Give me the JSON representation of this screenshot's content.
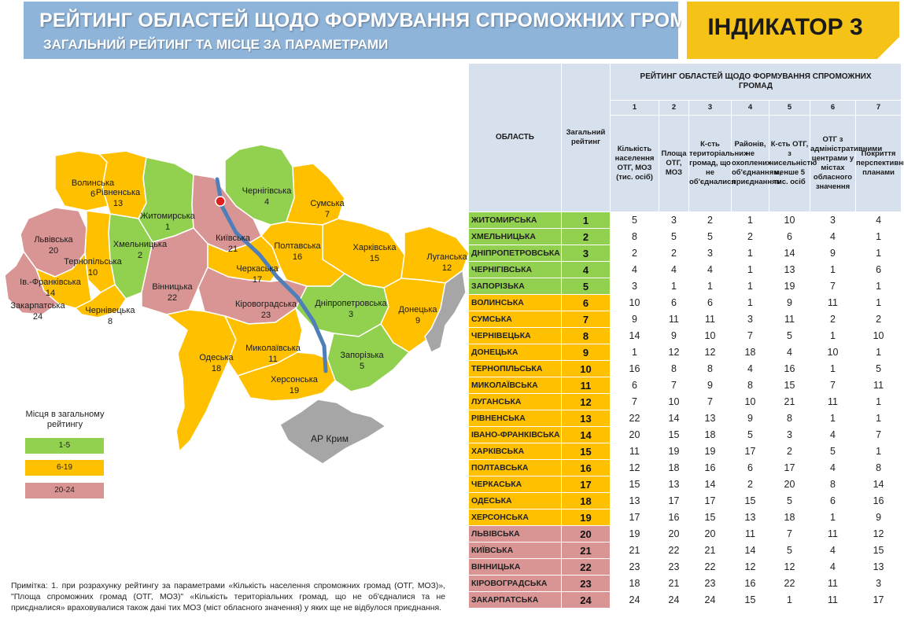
{
  "header": {
    "title": "РЕЙТИНГ ОБЛАСТЕЙ ЩОДО ФОРМУВАННЯ СПРОМОЖНИХ ГРОМАД",
    "subtitle": "ЗАГАЛЬНИЙ РЕЙТИНГ ТА МІСЦЕ ЗА ПАРАМЕТРАМИ",
    "indicator": "ІНДИКАТОР 3"
  },
  "colors": {
    "green": "#92d050",
    "yellow": "#ffc000",
    "red": "#d99594",
    "grey": "#a6a6a6",
    "header_blue": "#8fb4d9",
    "indicator_yellow": "#f5c317"
  },
  "map": {
    "regions": [
      {
        "name": "Волинська",
        "num": "6",
        "group": "yellow"
      },
      {
        "name": "Рівненська",
        "num": "13",
        "group": "yellow"
      },
      {
        "name": "Житомирська",
        "num": "1",
        "group": "green"
      },
      {
        "name": "Київська",
        "num": "21",
        "group": "red"
      },
      {
        "name": "Чернігівська",
        "num": "4",
        "group": "green"
      },
      {
        "name": "Сумська",
        "num": "7",
        "group": "yellow"
      },
      {
        "name": "Харківська",
        "num": "15",
        "group": "yellow"
      },
      {
        "name": "Луганська",
        "num": "12",
        "group": "yellow"
      },
      {
        "name": "Львівська",
        "num": "20",
        "group": "red"
      },
      {
        "name": "Хмельницька",
        "num": "2",
        "group": "green"
      },
      {
        "name": "Тернопільська",
        "num": "10",
        "group": "yellow"
      },
      {
        "name": "Ів.-Франківська",
        "num": "14",
        "group": "yellow"
      },
      {
        "name": "Закарпатська",
        "num": "24",
        "group": "red"
      },
      {
        "name": "Чернівецька",
        "num": "8",
        "group": "yellow"
      },
      {
        "name": "Вінницька",
        "num": "22",
        "group": "red"
      },
      {
        "name": "Черкаська",
        "num": "17",
        "group": "yellow"
      },
      {
        "name": "Полтавська",
        "num": "16",
        "group": "yellow"
      },
      {
        "name": "Кіровоградська",
        "num": "23",
        "group": "red"
      },
      {
        "name": "Дніпропетровська",
        "num": "3",
        "group": "green"
      },
      {
        "name": "Донецька",
        "num": "9",
        "group": "yellow"
      },
      {
        "name": "Одеська",
        "num": "18",
        "group": "yellow"
      },
      {
        "name": "Миколаївська",
        "num": "11",
        "group": "yellow"
      },
      {
        "name": "Запорізька",
        "num": "5",
        "group": "green"
      },
      {
        "name": "Херсонська",
        "num": "19",
        "group": "yellow"
      }
    ],
    "crimea": "АР Крим"
  },
  "legend": {
    "title": "Місця в загальному рейтингу",
    "items": [
      {
        "label": "1-5",
        "color": "#92d050"
      },
      {
        "label": "6-19",
        "color": "#ffc000"
      },
      {
        "label": "20-24",
        "color": "#d99594"
      }
    ]
  },
  "note": "Примітка: 1. при розрахунку рейтингу за параметрами «Кількість населення спроможних громад (ОТГ, МОЗ)», \"Площа спроможних громад (ОТГ, МОЗ)\" «Кількість територіальних громад, що не об'єдналися та не приєдналися» враховувалися також дані тих МОЗ (міст обласного значення) у яких ще не відбулося приєднання.",
  "table": {
    "col_region": "ОБЛАСТЬ",
    "col_overall": "Загальний рейтинг",
    "group_header": "РЕЙТИНГ ОБЛАСТЕЙ ЩОДО ФОРМУВАННЯ СПРОМОЖНИХ ГРОМАД",
    "param_nums": [
      "1",
      "2",
      "3",
      "4",
      "5",
      "6",
      "7"
    ],
    "param_names": [
      "Кількість населення ОТГ, МОЗ (тис. осіб)",
      "Площа ОТГ, МОЗ",
      "К-сть територіальних громад, що не об'єдналися",
      "Районів, не охоплених об'єднанням, приєднанням",
      "К-сть ОТГ, з чисельністю менше 5 тис. осіб",
      "ОТГ з адміністративними центрами у містах обласного значення",
      "Покриття перспективними планами"
    ],
    "rows": [
      {
        "region": "ЖИТОМИРСЬКА",
        "rank": "1",
        "group": "green",
        "v": [
          "5",
          "3",
          "2",
          "1",
          "10",
          "3",
          "4"
        ]
      },
      {
        "region": "ХМЕЛЬНИЦЬКА",
        "rank": "2",
        "group": "green",
        "v": [
          "8",
          "5",
          "5",
          "2",
          "6",
          "4",
          "1"
        ]
      },
      {
        "region": "ДНІПРОПЕТРОВСЬКА",
        "rank": "3",
        "group": "green",
        "v": [
          "2",
          "2",
          "3",
          "1",
          "14",
          "9",
          "1"
        ]
      },
      {
        "region": "ЧЕРНІГІВСЬКА",
        "rank": "4",
        "group": "green",
        "v": [
          "4",
          "4",
          "4",
          "1",
          "13",
          "1",
          "6"
        ]
      },
      {
        "region": "ЗАПОРІЗЬКА",
        "rank": "5",
        "group": "green",
        "v": [
          "3",
          "1",
          "1",
          "1",
          "19",
          "7",
          "1"
        ]
      },
      {
        "region": "ВОЛИНСЬКА",
        "rank": "6",
        "group": "yellow",
        "v": [
          "10",
          "6",
          "6",
          "1",
          "9",
          "11",
          "1"
        ]
      },
      {
        "region": "СУМСЬКА",
        "rank": "7",
        "group": "yellow",
        "v": [
          "9",
          "11",
          "11",
          "3",
          "11",
          "2",
          "2"
        ]
      },
      {
        "region": "ЧЕРНІВЕЦЬКА",
        "rank": "8",
        "group": "yellow",
        "v": [
          "14",
          "9",
          "10",
          "7",
          "5",
          "1",
          "10"
        ]
      },
      {
        "region": "ДОНЕЦЬКА",
        "rank": "9",
        "group": "yellow",
        "v": [
          "1",
          "12",
          "12",
          "18",
          "4",
          "10",
          "1"
        ]
      },
      {
        "region": "ТЕРНОПІЛЬСЬКА",
        "rank": "10",
        "group": "yellow",
        "v": [
          "16",
          "8",
          "8",
          "4",
          "16",
          "1",
          "5"
        ]
      },
      {
        "region": "МИКОЛАЇВСЬКА",
        "rank": "11",
        "group": "yellow",
        "v": [
          "6",
          "7",
          "9",
          "8",
          "15",
          "7",
          "11"
        ]
      },
      {
        "region": "ЛУГАНСЬКА",
        "rank": "12",
        "group": "yellow",
        "v": [
          "7",
          "10",
          "7",
          "10",
          "21",
          "11",
          "1"
        ]
      },
      {
        "region": "РІВНЕНСЬКА",
        "rank": "13",
        "group": "yellow",
        "v": [
          "22",
          "14",
          "13",
          "9",
          "8",
          "1",
          "1"
        ]
      },
      {
        "region": "ІВАНО-ФРАНКІВСЬКА",
        "rank": "14",
        "group": "yellow",
        "v": [
          "20",
          "15",
          "18",
          "5",
          "3",
          "4",
          "7"
        ]
      },
      {
        "region": "ХАРКІВСЬКА",
        "rank": "15",
        "group": "yellow",
        "v": [
          "11",
          "19",
          "19",
          "17",
          "2",
          "5",
          "1"
        ]
      },
      {
        "region": "ПОЛТАВСЬКА",
        "rank": "16",
        "group": "yellow",
        "v": [
          "12",
          "18",
          "16",
          "6",
          "17",
          "4",
          "8"
        ]
      },
      {
        "region": "ЧЕРКАСЬКА",
        "rank": "17",
        "group": "yellow",
        "v": [
          "15",
          "13",
          "14",
          "2",
          "20",
          "8",
          "14"
        ]
      },
      {
        "region": "ОДЕСЬКА",
        "rank": "18",
        "group": "yellow",
        "v": [
          "13",
          "17",
          "17",
          "15",
          "5",
          "6",
          "16"
        ]
      },
      {
        "region": "ХЕРСОНСЬКА",
        "rank": "19",
        "group": "yellow",
        "v": [
          "17",
          "16",
          "15",
          "13",
          "18",
          "1",
          "9"
        ]
      },
      {
        "region": "ЛЬВІВСЬКА",
        "rank": "20",
        "group": "red",
        "v": [
          "19",
          "20",
          "20",
          "11",
          "7",
          "11",
          "12"
        ]
      },
      {
        "region": "КИЇВСЬКА",
        "rank": "21",
        "group": "red",
        "v": [
          "21",
          "22",
          "21",
          "14",
          "5",
          "4",
          "15"
        ]
      },
      {
        "region": "ВІННИЦЬКА",
        "rank": "22",
        "group": "red",
        "v": [
          "23",
          "23",
          "22",
          "12",
          "12",
          "4",
          "13"
        ]
      },
      {
        "region": "КІРОВОГРАДСЬКА",
        "rank": "23",
        "group": "red",
        "v": [
          "18",
          "21",
          "23",
          "16",
          "22",
          "11",
          "3"
        ]
      },
      {
        "region": "ЗАКАРПАТСЬКА",
        "rank": "24",
        "group": "red",
        "v": [
          "24",
          "24",
          "24",
          "15",
          "1",
          "11",
          "17"
        ]
      }
    ]
  }
}
